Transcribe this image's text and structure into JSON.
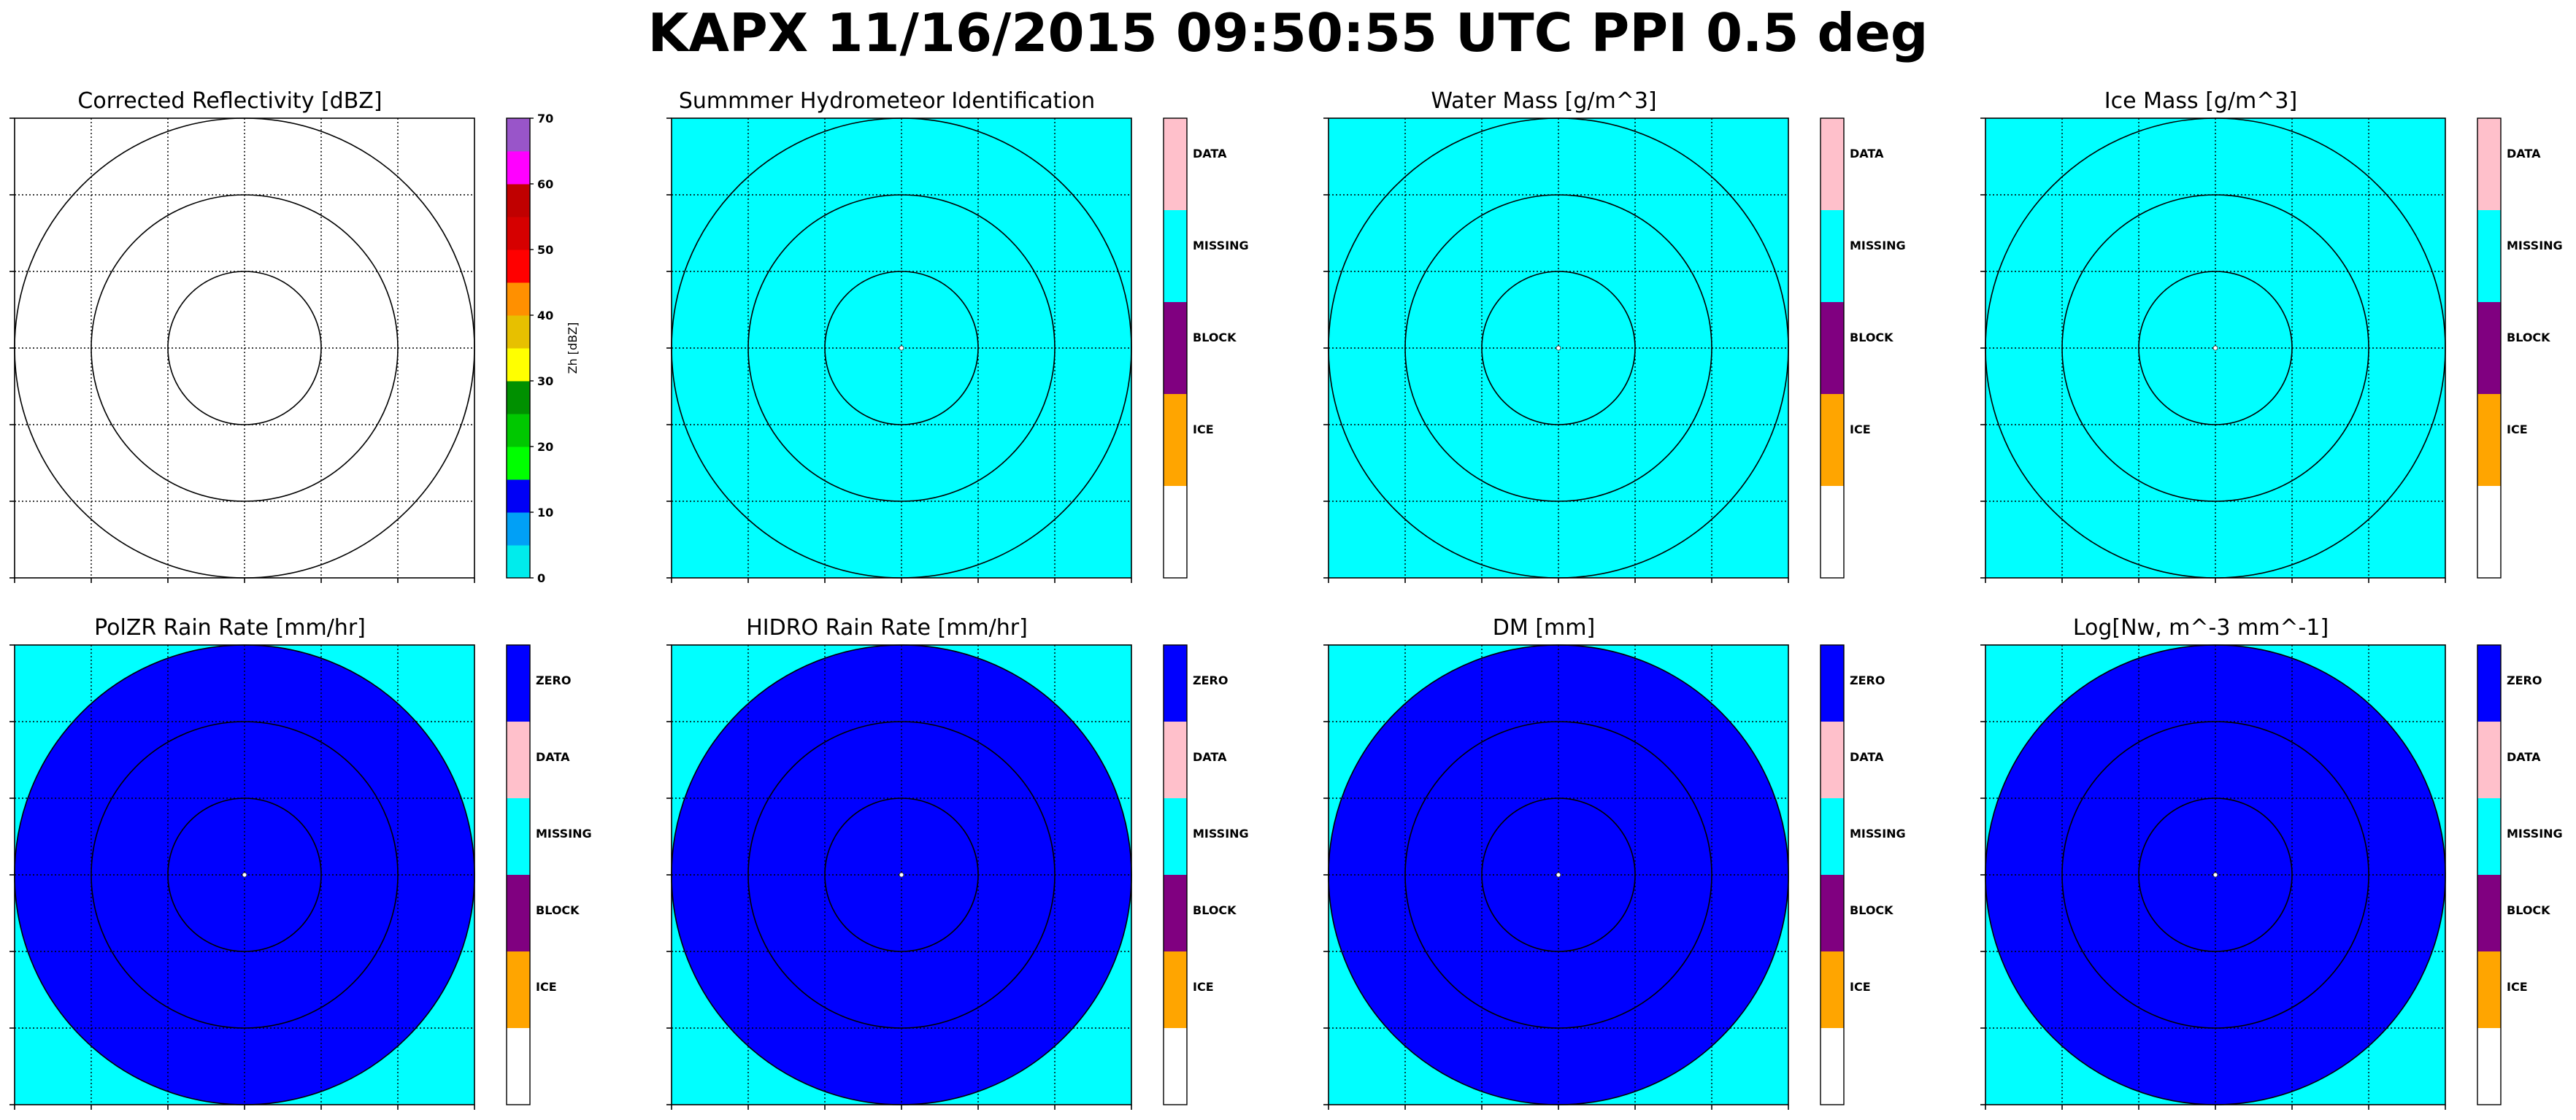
{
  "figure": {
    "title": "KAPX 11/16/2015 09:50:55 UTC PPI 0.5 deg"
  },
  "chart_data": [
    {
      "type": "heatmap",
      "title": "Corrected Reflectivity [dBZ]",
      "background_color": "#ffffff",
      "data_disk": false,
      "colorbar": {
        "kind": "continuous",
        "label": "Zh [dBZ]",
        "range": [
          0,
          70
        ],
        "ticks": [
          "0",
          "10",
          "20",
          "30",
          "40",
          "50",
          "60",
          "70"
        ],
        "colors": [
          "#00ecec",
          "#01a0f6",
          "#0000f6",
          "#00ff00",
          "#00c800",
          "#009000",
          "#ffff00",
          "#e7c000",
          "#ff9000",
          "#ff0000",
          "#d60000",
          "#c00000",
          "#ff00ff",
          "#9955c9"
        ]
      },
      "range_rings": 3,
      "grid": true
    },
    {
      "type": "heatmap",
      "title": "Summmer Hydrometeor Identification",
      "background_color": "#00ffff",
      "data_disk": false,
      "center_point": true,
      "colorbar": {
        "kind": "categorical",
        "categories": [
          "DATA",
          "MISSING",
          "BLOCK",
          "ICE",
          ""
        ],
        "colors": [
          "#ffc0cb",
          "#00ffff",
          "#800080",
          "#ffa500",
          "#ffffff"
        ]
      },
      "range_rings": 3,
      "grid": true
    },
    {
      "type": "heatmap",
      "title": "Water Mass [g/m^3]",
      "background_color": "#00ffff",
      "data_disk": false,
      "center_point": true,
      "colorbar": {
        "kind": "categorical",
        "categories": [
          "DATA",
          "MISSING",
          "BLOCK",
          "ICE",
          ""
        ],
        "colors": [
          "#ffc0cb",
          "#00ffff",
          "#800080",
          "#ffa500",
          "#ffffff"
        ]
      },
      "range_rings": 3,
      "grid": true
    },
    {
      "type": "heatmap",
      "title": "Ice Mass [g/m^3]",
      "background_color": "#00ffff",
      "data_disk": false,
      "center_point": true,
      "colorbar": {
        "kind": "categorical",
        "categories": [
          "DATA",
          "MISSING",
          "BLOCK",
          "ICE",
          ""
        ],
        "colors": [
          "#ffc0cb",
          "#00ffff",
          "#800080",
          "#ffa500",
          "#ffffff"
        ]
      },
      "range_rings": 3,
      "grid": true
    },
    {
      "type": "heatmap",
      "title": "PolZR Rain Rate [mm/hr]",
      "background_color": "#00ffff",
      "data_disk": true,
      "disk_color": "#0000ff",
      "center_point": true,
      "colorbar": {
        "kind": "categorical",
        "categories": [
          "ZERO",
          "DATA",
          "MISSING",
          "BLOCK",
          "ICE",
          ""
        ],
        "colors": [
          "#0000ff",
          "#ffc0cb",
          "#00ffff",
          "#800080",
          "#ffa500",
          "#ffffff"
        ]
      },
      "range_rings": 3,
      "grid": true
    },
    {
      "type": "heatmap",
      "title": "HIDRO Rain Rate [mm/hr]",
      "background_color": "#00ffff",
      "data_disk": true,
      "disk_color": "#0000ff",
      "center_point": true,
      "colorbar": {
        "kind": "categorical",
        "categories": [
          "ZERO",
          "DATA",
          "MISSING",
          "BLOCK",
          "ICE",
          ""
        ],
        "colors": [
          "#0000ff",
          "#ffc0cb",
          "#00ffff",
          "#800080",
          "#ffa500",
          "#ffffff"
        ]
      },
      "range_rings": 3,
      "grid": true
    },
    {
      "type": "heatmap",
      "title": "DM [mm]",
      "background_color": "#00ffff",
      "data_disk": true,
      "disk_color": "#0000ff",
      "center_point": true,
      "colorbar": {
        "kind": "categorical",
        "categories": [
          "ZERO",
          "DATA",
          "MISSING",
          "BLOCK",
          "ICE",
          ""
        ],
        "colors": [
          "#0000ff",
          "#ffc0cb",
          "#00ffff",
          "#800080",
          "#ffa500",
          "#ffffff"
        ]
      },
      "range_rings": 3,
      "grid": true
    },
    {
      "type": "heatmap",
      "title": "Log[Nw, m^-3 mm^-1]",
      "background_color": "#00ffff",
      "data_disk": true,
      "disk_color": "#0000ff",
      "center_point": true,
      "colorbar": {
        "kind": "categorical",
        "categories": [
          "ZERO",
          "DATA",
          "MISSING",
          "BLOCK",
          "ICE",
          ""
        ],
        "colors": [
          "#0000ff",
          "#ffc0cb",
          "#00ffff",
          "#800080",
          "#ffa500",
          "#ffffff"
        ]
      },
      "range_rings": 3,
      "grid": true
    }
  ]
}
